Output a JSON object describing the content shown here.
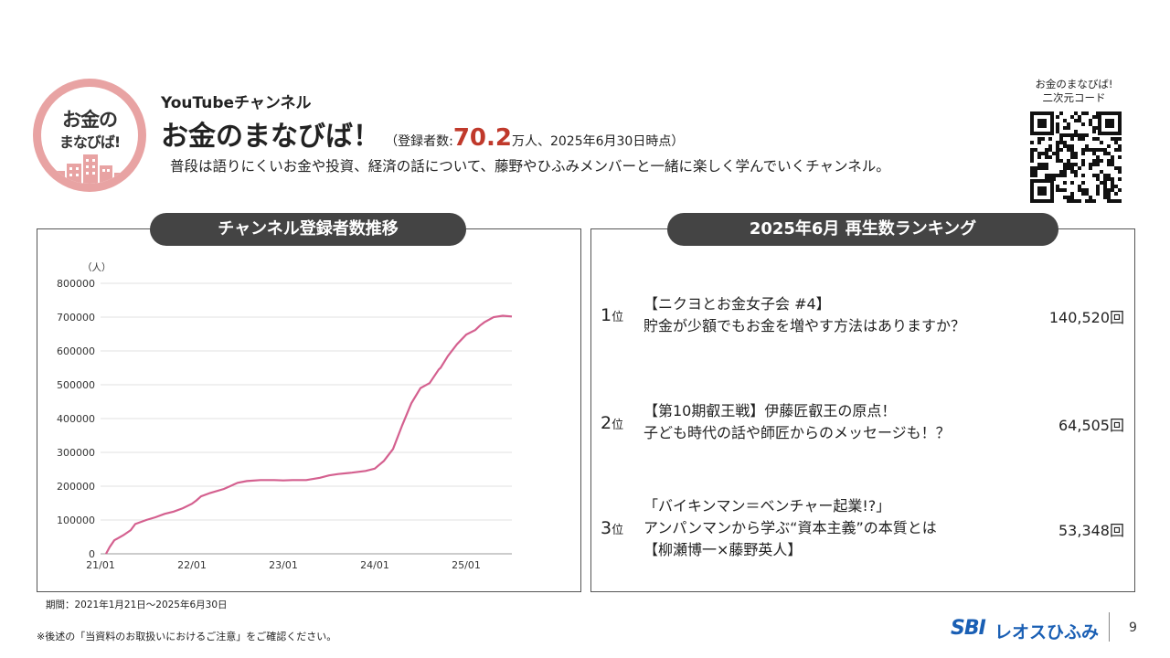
{
  "logo": {
    "line1": "お金の",
    "line2": "まなびば!"
  },
  "header": {
    "channel_type": "YouTubeチャンネル",
    "channel_name": "お金のまなびば！",
    "sub_prefix": "（登録者数:",
    "sub_count": "70.2",
    "sub_suffix": "万人、2025年6月30日時点）",
    "description": "普段は語りにくいお金や投資、経済の話について、藤野やひふみメンバーと一緒に楽しく学んでいくチャンネル。",
    "qr_label_line1": "お金のまなびば!",
    "qr_label_line2": "二次元コード"
  },
  "left_panel": {
    "title": "チャンネル登録者数推移",
    "period": "期間：2021年1月21日～2025年6月30日"
  },
  "chart_data": {
    "type": "line",
    "title": "チャンネル登録者数推移",
    "ylabel": "（人）",
    "xlabel": "",
    "ylim": [
      0,
      800000
    ],
    "y_ticks": [
      "0",
      "100000",
      "200000",
      "300000",
      "400000",
      "500000",
      "600000",
      "700000",
      "800000"
    ],
    "x_ticks": [
      "21/01",
      "22/01",
      "23/01",
      "24/01",
      "25/01"
    ],
    "x_tick_positions": [
      2021.0,
      2022.0,
      2023.0,
      2024.0,
      2025.0
    ],
    "color": "#d4608f",
    "grid": true,
    "series": [
      {
        "x": [
          2021.06,
          2021.1,
          2021.15,
          2021.25,
          2021.33,
          2021.38,
          2021.5,
          2021.6,
          2021.7,
          2021.8,
          2021.9,
          2022.0,
          2022.05,
          2022.1,
          2022.2,
          2022.35,
          2022.5,
          2022.6,
          2022.75,
          2022.9,
          2023.0,
          2023.1,
          2023.25,
          2023.4,
          2023.5,
          2023.6,
          2023.75,
          2023.9,
          2024.0,
          2024.1,
          2024.2,
          2024.3,
          2024.4,
          2024.5,
          2024.6,
          2024.7,
          2024.72,
          2024.8,
          2024.9,
          2025.0,
          2025.1,
          2025.15,
          2025.2,
          2025.3,
          2025.4,
          2025.5
        ],
        "values": [
          0,
          20000,
          40000,
          55000,
          70000,
          88000,
          100000,
          108000,
          118000,
          125000,
          135000,
          148000,
          158000,
          170000,
          180000,
          192000,
          210000,
          215000,
          218000,
          218000,
          217000,
          218000,
          218000,
          225000,
          232000,
          236000,
          240000,
          245000,
          252000,
          275000,
          310000,
          380000,
          445000,
          490000,
          505000,
          545000,
          550000,
          585000,
          620000,
          648000,
          662000,
          675000,
          685000,
          700000,
          704000,
          702000
        ]
      }
    ]
  },
  "ranking": {
    "title": "2025年6月 再生数ランキング",
    "items": [
      {
        "rank_num": "1",
        "rank_unit": "位",
        "line1": "【ニクヨとお金女子会 #4】",
        "line2": "貯金が少額でもお金を増やす方法はありますか？",
        "line3": "",
        "views": "140,520回"
      },
      {
        "rank_num": "2",
        "rank_unit": "位",
        "line1": "【第10期叡王戦】伊藤匠叡王の原点！",
        "line2": "子ども時代の話や師匠からのメッセージも！？",
        "line3": "",
        "views": "64,505回"
      },
      {
        "rank_num": "3",
        "rank_unit": "位",
        "line1": "「バイキンマン＝ベンチャー起業!?」",
        "line2": "アンパンマンから学ぶ“資本主義”の本質とは",
        "line3": "【柳瀬博一×藤野英人】",
        "views": "53,348回"
      }
    ]
  },
  "footer": {
    "note": "※後述の「当資料のお取扱いにおけるご注意」をご確認ください。",
    "brand_sbi": "SBI",
    "brand_name": "レオスひふみ",
    "page_number": "9"
  }
}
